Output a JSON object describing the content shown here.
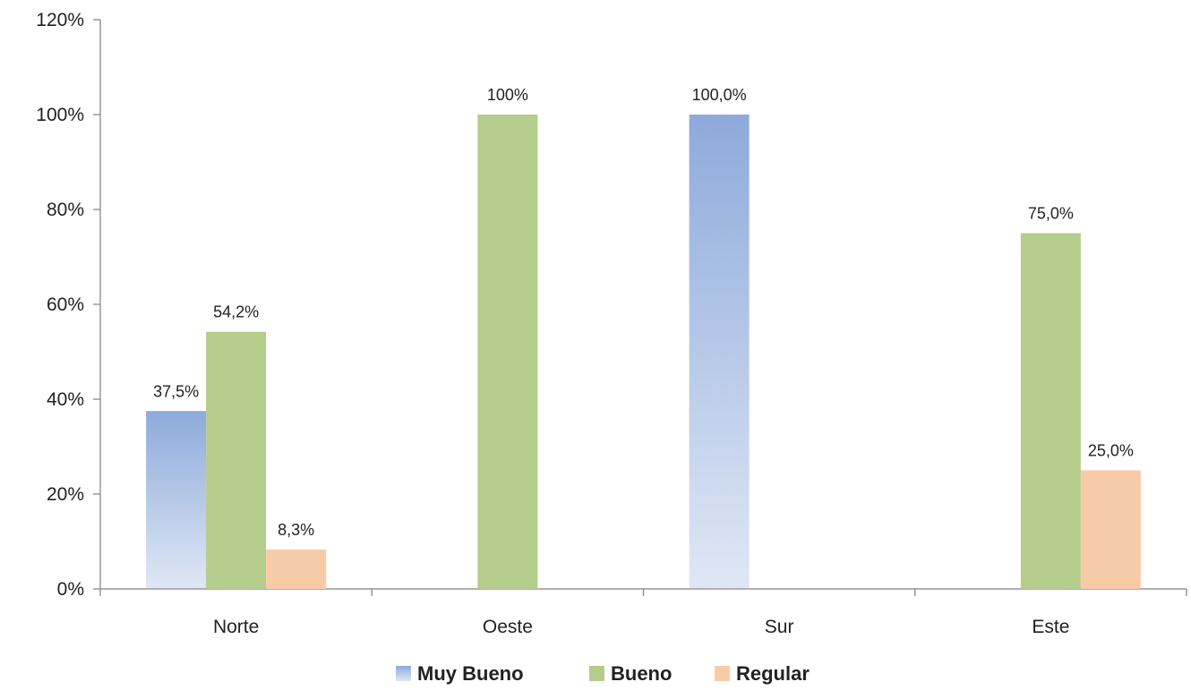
{
  "chart_data": {
    "type": "bar",
    "categories": [
      "Norte",
      "Oeste",
      "Sur",
      "Este"
    ],
    "series": [
      {
        "name": "Muy Bueno",
        "color": "#8eaadb",
        "values": [
          37.5,
          null,
          100,
          null
        ],
        "labels": [
          "37,5%",
          "",
          "100,0%",
          ""
        ]
      },
      {
        "name": "Bueno",
        "color": "#b4cc8c",
        "values": [
          54.2,
          100,
          null,
          75
        ],
        "labels": [
          "54,2%",
          "100%",
          "",
          "75,0%"
        ]
      },
      {
        "name": "Regular",
        "color": "#f8cba8",
        "values": [
          8.3,
          null,
          null,
          25
        ],
        "labels": [
          "8,3%",
          "",
          "",
          "25,0%"
        ]
      }
    ],
    "y_ticks": [
      0,
      20,
      40,
      60,
      80,
      100,
      120
    ],
    "y_tick_labels": [
      "0%",
      "20%",
      "40%",
      "60%",
      "80%",
      "100%",
      "120%"
    ],
    "ylim": [
      0,
      120
    ],
    "grid": false,
    "legend_position": "bottom"
  }
}
